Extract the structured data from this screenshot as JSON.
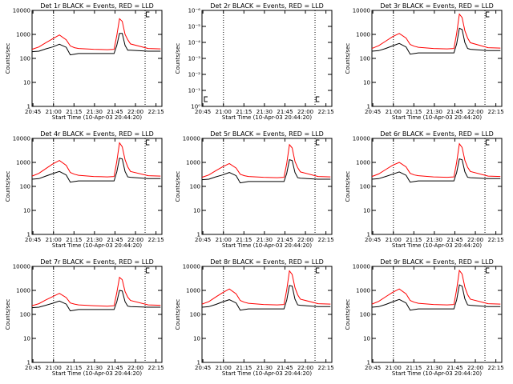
{
  "chart_data": [
    {
      "type": "line",
      "title": "Det 1r BLACK = Events, RED = LLD",
      "xlabel": "Start Time (10-Apr-03 20:44:20)",
      "ylabel": "Counts/sec",
      "x_ticks": [
        "20:45",
        "21:00",
        "21:15",
        "21:30",
        "21:45",
        "22:00",
        "22:15"
      ],
      "y_ticks": [
        "1",
        "10",
        "100",
        "1000",
        "10000"
      ],
      "y_scale": "log",
      "ylim": [
        1,
        10000
      ],
      "x_minutes_range": [
        0,
        95
      ],
      "dotted_vlines_min": [
        15.7,
        82.7
      ],
      "has_data": true,
      "series": [
        {
          "color": "#000000",
          "x": [
            0,
            5,
            10,
            15,
            20,
            25,
            28,
            31,
            34,
            45,
            55,
            60,
            62,
            64,
            66,
            68,
            70,
            72,
            85,
            94
          ],
          "y": [
            190,
            200,
            250,
            300,
            390,
            290,
            140,
            150,
            160,
            160,
            160,
            160,
            350,
            1100,
            1100,
            350,
            220,
            220,
            200,
            200
          ]
        },
        {
          "color": "#ff0000",
          "x": [
            0,
            5,
            10,
            15,
            20,
            25,
            28,
            31,
            34,
            45,
            55,
            60,
            62,
            64,
            66,
            68,
            70,
            72,
            85,
            94
          ],
          "y": [
            240,
            300,
            450,
            650,
            950,
            600,
            330,
            280,
            260,
            240,
            230,
            240,
            900,
            4500,
            3500,
            1000,
            600,
            400,
            260,
            250
          ]
        }
      ]
    },
    {
      "type": "line",
      "title": "Det 2r BLACK = Events, RED = LLD",
      "xlabel": "Start Time (10-Apr-03 20:44:20)",
      "ylabel": "Counts/sec",
      "x_ticks": [
        "20:45",
        "21:00",
        "21:15",
        "21:30",
        "21:45",
        "22:00",
        "22:15"
      ],
      "y_ticks": [
        "10⁰",
        "10⁻¹",
        "10⁻²",
        "10⁻³",
        "10⁻⁴",
        "10⁻⁵",
        "10⁻⁶"
      ],
      "y_scale": "log",
      "ylim": [
        1,
        1e-06
      ],
      "x_minutes_range": [
        0,
        95
      ],
      "dotted_vlines_min": [
        15.7,
        82.7
      ],
      "has_data": false,
      "series": []
    },
    {
      "type": "line",
      "title": "Det 3r BLACK = Events, RED = LLD",
      "xlabel": "Start Time (10-Apr-03 20:44:20)",
      "ylabel": "Counts/sec",
      "x_ticks": [
        "20:45",
        "21:00",
        "21:15",
        "21:30",
        "21:45",
        "22:00",
        "22:15"
      ],
      "y_ticks": [
        "1",
        "10",
        "100",
        "1000",
        "10000"
      ],
      "y_scale": "log",
      "ylim": [
        1,
        10000
      ],
      "x_minutes_range": [
        0,
        95
      ],
      "dotted_vlines_min": [
        15.7,
        82.7
      ],
      "has_data": true,
      "series": [
        {
          "color": "#000000",
          "x": [
            0,
            5,
            10,
            15,
            20,
            25,
            28,
            31,
            34,
            45,
            55,
            60,
            62,
            64,
            66,
            68,
            70,
            72,
            85,
            94
          ],
          "y": [
            200,
            210,
            260,
            330,
            420,
            300,
            150,
            160,
            170,
            170,
            170,
            170,
            400,
            1800,
            1600,
            450,
            260,
            240,
            210,
            210
          ]
        },
        {
          "color": "#ff0000",
          "x": [
            0,
            5,
            10,
            15,
            20,
            25,
            28,
            31,
            34,
            45,
            55,
            60,
            62,
            64,
            66,
            68,
            70,
            72,
            85,
            94
          ],
          "y": [
            260,
            340,
            520,
            800,
            1100,
            700,
            380,
            320,
            290,
            260,
            250,
            260,
            1100,
            7000,
            5000,
            1400,
            700,
            450,
            280,
            270
          ]
        }
      ]
    },
    {
      "type": "line",
      "title": "Det 4r BLACK = Events, RED = LLD",
      "xlabel": "Start Time (10-Apr-03 20:44:20)",
      "ylabel": "Counts/sec",
      "x_ticks": [
        "20:45",
        "21:00",
        "21:15",
        "21:30",
        "21:45",
        "22:00",
        "22:15"
      ],
      "y_ticks": [
        "1",
        "10",
        "100",
        "1000",
        "10000"
      ],
      "y_scale": "log",
      "ylim": [
        1,
        10000
      ],
      "x_minutes_range": [
        0,
        95
      ],
      "dotted_vlines_min": [
        15.7,
        82.7
      ],
      "has_data": true,
      "series": [
        {
          "color": "#000000",
          "x": [
            0,
            5,
            10,
            15,
            20,
            25,
            28,
            31,
            34,
            45,
            55,
            60,
            62,
            64,
            66,
            68,
            70,
            72,
            85,
            94
          ],
          "y": [
            200,
            210,
            270,
            340,
            420,
            300,
            150,
            160,
            170,
            170,
            170,
            170,
            400,
            1500,
            1400,
            420,
            250,
            240,
            210,
            210
          ]
        },
        {
          "color": "#ff0000",
          "x": [
            0,
            5,
            10,
            15,
            20,
            25,
            28,
            31,
            34,
            45,
            55,
            60,
            62,
            64,
            66,
            68,
            70,
            72,
            85,
            94
          ],
          "y": [
            270,
            350,
            550,
            850,
            1200,
            750,
            380,
            320,
            290,
            260,
            250,
            260,
            1100,
            6500,
            4500,
            1300,
            650,
            420,
            280,
            270
          ]
        }
      ]
    },
    {
      "type": "line",
      "title": "Det 5r BLACK = Events, RED = LLD",
      "xlabel": "Start Time (10-Apr-03 20:44:20)",
      "ylabel": "Counts/sec",
      "x_ticks": [
        "20:45",
        "21:00",
        "21:15",
        "21:30",
        "21:45",
        "22:00",
        "22:15"
      ],
      "y_ticks": [
        "1",
        "10",
        "100",
        "1000",
        "10000"
      ],
      "y_scale": "log",
      "ylim": [
        1,
        10000
      ],
      "x_minutes_range": [
        0,
        95
      ],
      "dotted_vlines_min": [
        15.7,
        82.7
      ],
      "has_data": true,
      "series": [
        {
          "color": "#000000",
          "x": [
            0,
            5,
            10,
            15,
            20,
            25,
            28,
            31,
            34,
            45,
            55,
            60,
            62,
            64,
            66,
            68,
            70,
            72,
            85,
            94
          ],
          "y": [
            190,
            200,
            250,
            300,
            380,
            280,
            140,
            150,
            160,
            160,
            160,
            160,
            350,
            1300,
            1200,
            380,
            230,
            220,
            200,
            200
          ]
        },
        {
          "color": "#ff0000",
          "x": [
            0,
            5,
            10,
            15,
            20,
            25,
            28,
            31,
            34,
            45,
            55,
            60,
            62,
            64,
            66,
            68,
            70,
            72,
            85,
            94
          ],
          "y": [
            240,
            300,
            450,
            650,
            900,
            580,
            320,
            280,
            260,
            240,
            230,
            240,
            900,
            5500,
            4000,
            1100,
            600,
            400,
            260,
            250
          ]
        }
      ]
    },
    {
      "type": "line",
      "title": "Det 6r BLACK = Events, RED = LLD",
      "xlabel": "Start Time (10-Apr-03 20:44:20)",
      "ylabel": "Counts/sec",
      "x_ticks": [
        "20:45",
        "21:00",
        "21:15",
        "21:30",
        "21:45",
        "22:00",
        "22:15"
      ],
      "y_ticks": [
        "1",
        "10",
        "100",
        "1000",
        "10000"
      ],
      "y_scale": "log",
      "ylim": [
        1,
        10000
      ],
      "x_minutes_range": [
        0,
        95
      ],
      "dotted_vlines_min": [
        15.7,
        82.7
      ],
      "has_data": true,
      "series": [
        {
          "color": "#000000",
          "x": [
            0,
            5,
            10,
            15,
            20,
            25,
            28,
            31,
            34,
            45,
            55,
            60,
            62,
            64,
            66,
            68,
            70,
            72,
            85,
            94
          ],
          "y": [
            200,
            210,
            260,
            320,
            400,
            290,
            150,
            160,
            170,
            170,
            170,
            170,
            380,
            1400,
            1300,
            400,
            240,
            230,
            210,
            210
          ]
        },
        {
          "color": "#ff0000",
          "x": [
            0,
            5,
            10,
            15,
            20,
            25,
            28,
            31,
            34,
            45,
            55,
            60,
            62,
            64,
            66,
            68,
            70,
            72,
            85,
            94
          ],
          "y": [
            260,
            330,
            500,
            750,
            1000,
            650,
            350,
            300,
            280,
            250,
            240,
            250,
            1000,
            6000,
            4200,
            1200,
            620,
            420,
            270,
            260
          ]
        }
      ]
    },
    {
      "type": "line",
      "title": "Det 7r BLACK = Events, RED = LLD",
      "xlabel": "Start Time (10-Apr-03 20:44:20)",
      "ylabel": "Counts/sec",
      "x_ticks": [
        "20:45",
        "21:00",
        "21:15",
        "21:30",
        "21:45",
        "22:00",
        "22:15"
      ],
      "y_ticks": [
        "1",
        "10",
        "100",
        "1000",
        "10000"
      ],
      "y_scale": "log",
      "ylim": [
        1,
        10000
      ],
      "x_minutes_range": [
        0,
        95
      ],
      "dotted_vlines_min": [
        15.7,
        82.7
      ],
      "has_data": true,
      "series": [
        {
          "color": "#000000",
          "x": [
            0,
            5,
            10,
            15,
            20,
            25,
            28,
            31,
            34,
            45,
            55,
            60,
            62,
            64,
            66,
            68,
            70,
            72,
            85,
            94
          ],
          "y": [
            190,
            200,
            240,
            290,
            360,
            270,
            140,
            150,
            160,
            160,
            160,
            160,
            330,
            1000,
            950,
            340,
            220,
            210,
            200,
            200
          ]
        },
        {
          "color": "#ff0000",
          "x": [
            0,
            5,
            10,
            15,
            20,
            25,
            28,
            31,
            34,
            45,
            55,
            60,
            62,
            64,
            66,
            68,
            70,
            72,
            85,
            94
          ],
          "y": [
            230,
            280,
            400,
            550,
            750,
            500,
            300,
            270,
            250,
            230,
            220,
            230,
            800,
            3500,
            2800,
            900,
            520,
            380,
            250,
            240
          ]
        }
      ]
    },
    {
      "type": "line",
      "title": "Det 8r BLACK = Events, RED = LLD",
      "xlabel": "Start Time (10-Apr-03 20:44:20)",
      "ylabel": "Counts/sec",
      "x_ticks": [
        "20:45",
        "21:00",
        "21:15",
        "21:30",
        "21:45",
        "22:00",
        "22:15"
      ],
      "y_ticks": [
        "1",
        "10",
        "100",
        "1000",
        "10000"
      ],
      "y_scale": "log",
      "ylim": [
        1,
        10000
      ],
      "x_minutes_range": [
        0,
        95
      ],
      "dotted_vlines_min": [
        15.7,
        82.7
      ],
      "has_data": true,
      "series": [
        {
          "color": "#000000",
          "x": [
            0,
            5,
            10,
            15,
            20,
            25,
            28,
            31,
            34,
            45,
            55,
            60,
            62,
            64,
            66,
            68,
            70,
            72,
            85,
            94
          ],
          "y": [
            200,
            210,
            260,
            330,
            410,
            300,
            150,
            160,
            170,
            170,
            170,
            170,
            390,
            1600,
            1500,
            430,
            250,
            240,
            210,
            210
          ]
        },
        {
          "color": "#ff0000",
          "x": [
            0,
            5,
            10,
            15,
            20,
            25,
            28,
            31,
            34,
            45,
            55,
            60,
            62,
            64,
            66,
            68,
            70,
            72,
            85,
            94
          ],
          "y": [
            270,
            340,
            530,
            800,
            1150,
            720,
            380,
            320,
            290,
            260,
            250,
            260,
            1050,
            6500,
            4600,
            1300,
            650,
            430,
            280,
            270
          ]
        }
      ]
    },
    {
      "type": "line",
      "title": "Det 9r BLACK = Events, RED = LLD",
      "xlabel": "Start Time (10-Apr-03 20:44:20)",
      "ylabel": "Counts/sec",
      "x_ticks": [
        "20:45",
        "21:00",
        "21:15",
        "21:30",
        "21:45",
        "22:00",
        "22:15"
      ],
      "y_ticks": [
        "1",
        "10",
        "100",
        "1000",
        "10000"
      ],
      "y_scale": "log",
      "ylim": [
        1,
        10000
      ],
      "x_minutes_range": [
        0,
        95
      ],
      "dotted_vlines_min": [
        15.7,
        82.7
      ],
      "has_data": true,
      "series": [
        {
          "color": "#000000",
          "x": [
            0,
            5,
            10,
            15,
            20,
            25,
            28,
            31,
            34,
            45,
            55,
            60,
            62,
            64,
            66,
            68,
            70,
            72,
            85,
            94
          ],
          "y": [
            200,
            210,
            260,
            330,
            420,
            300,
            150,
            160,
            170,
            170,
            170,
            170,
            400,
            1700,
            1500,
            440,
            250,
            240,
            210,
            210
          ]
        },
        {
          "color": "#ff0000",
          "x": [
            0,
            5,
            10,
            15,
            20,
            25,
            28,
            31,
            34,
            45,
            55,
            60,
            62,
            64,
            66,
            68,
            70,
            72,
            85,
            94
          ],
          "y": [
            270,
            350,
            540,
            820,
            1150,
            720,
            380,
            320,
            290,
            260,
            250,
            260,
            1100,
            6800,
            4800,
            1350,
            660,
            430,
            280,
            270
          ]
        }
      ]
    }
  ]
}
